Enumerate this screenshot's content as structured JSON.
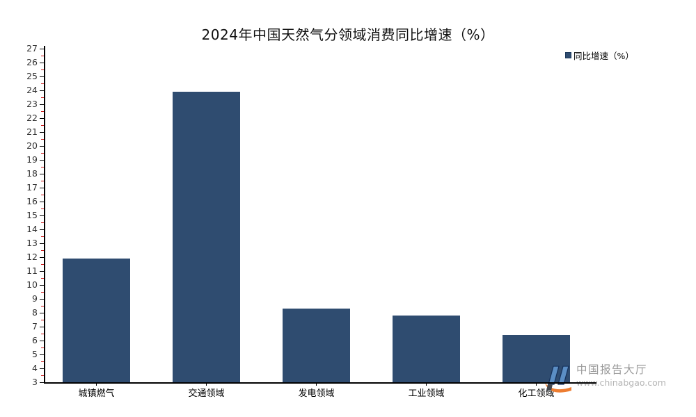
{
  "header": {
    "title": "2024年中国天然气分领域消费同比增速（%）"
  },
  "legend": {
    "label": "同比增速（%）",
    "marker_color": "#2f4c70"
  },
  "chart_data": {
    "type": "bar",
    "title": "2024年中国天然气分领域消费同比增速（%）",
    "categories": [
      "城镇燃气",
      "交通领域",
      "发电领域",
      "工业领域",
      "化工领域"
    ],
    "series": [
      {
        "name": "同比增速（%）",
        "values": [
          11.9,
          23.9,
          8.3,
          7.8,
          6.4
        ]
      }
    ],
    "xlabel": "",
    "ylabel": "",
    "ylim": [
      3,
      27
    ],
    "ytick_step": 1,
    "minor_tick_step": 0.5,
    "grid": false,
    "legend_position": "top-right",
    "bar_color": "#2f4c70",
    "axis_color": "#000000",
    "ytick_label_color": "#333333",
    "minor_tick_color": "#cc1111"
  },
  "watermark": {
    "site_name": "中国报告大厅",
    "site_url": "www.chinabgao.com",
    "logo_blue": "#5b8ec4",
    "logo_orange": "#ed7d31"
  }
}
